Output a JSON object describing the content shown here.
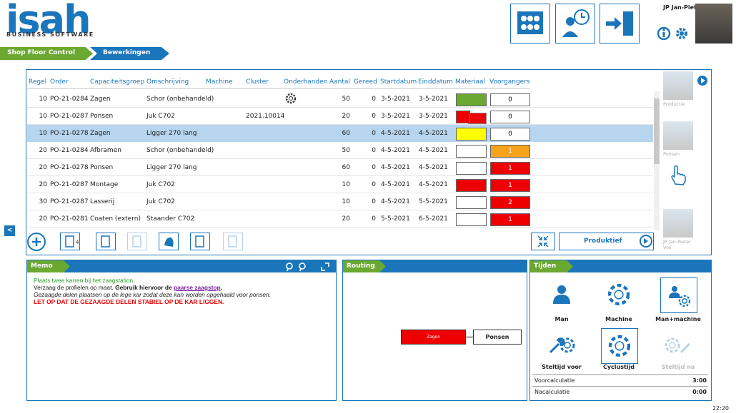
{
  "header": {
    "logo": "isah",
    "logo_sub": "BUSINESS SOFTWARE",
    "user": "JP Jan-Pieter Vos"
  },
  "breadcrumb": [
    "Shop Floor Control",
    "Bewerkingen"
  ],
  "table": {
    "columns": [
      "Regel",
      "Order",
      "Capaciteitsgroep",
      "Omschrijving",
      "Machine",
      "Cluster",
      "Onderhanden",
      "Aantal",
      "Gereed",
      "Startdatum",
      "Einddatum",
      "Materiaal",
      "Voorgangers"
    ],
    "rows": [
      {
        "regel": "10",
        "order": "PO-21-0284",
        "groep": "Zagen",
        "omschrijving": "Schor (onbehandeld)",
        "busy": true,
        "aantal": "50",
        "gereed": "0",
        "start": "3-5-2021",
        "eind": "3-5-2021",
        "materiaal": "#6aa832",
        "voorgangers": "0",
        "voorgangers_color": "#ffffff"
      },
      {
        "regel": "10",
        "order": "PO-21-0287",
        "groep": "Ponsen",
        "omschrijving": "Juk C702",
        "cluster": "2021.10014",
        "aantal": "20",
        "gereed": "0",
        "start": "3-5-2021",
        "eind": "3-5-2021",
        "materiaal": "#ee0000",
        "materiaal_stacked": true,
        "voorgangers": "0",
        "voorgangers_color": "#ffffff"
      },
      {
        "regel": "10",
        "order": "PO-21-0278",
        "groep": "Zagen",
        "omschrijving": "Ligger 270 lang",
        "aantal": "60",
        "gereed": "0",
        "start": "4-5-2021",
        "eind": "4-5-2021",
        "materiaal": "#ffff00",
        "voorgangers": "0",
        "voorgangers_color": "#ffffff",
        "selected": true
      },
      {
        "regel": "20",
        "order": "PO-21-0284",
        "groep": "Afbramen",
        "omschrijving": "Schor (onbehandeld)",
        "aantal": "50",
        "gereed": "0",
        "start": "4-5-2021",
        "eind": "4-5-2021",
        "materiaal": "#ffffff",
        "voorgangers": "1",
        "voorgangers_color": "#f7a21b"
      },
      {
        "regel": "20",
        "order": "PO-21-0278",
        "groep": "Ponsen",
        "omschrijving": "Ligger 270 lang",
        "aantal": "60",
        "gereed": "0",
        "start": "4-5-2021",
        "eind": "4-5-2021",
        "materiaal": "#ffffff",
        "voorgangers": "1",
        "voorgangers_color": "#ee0000"
      },
      {
        "regel": "20",
        "order": "PO-21-0287",
        "groep": "Montage",
        "omschrijving": "Juk C702",
        "aantal": "10",
        "gereed": "0",
        "start": "4-5-2021",
        "eind": "4-5-2021",
        "materiaal": "#ee0000",
        "voorgangers": "1",
        "voorgangers_color": "#ee0000"
      },
      {
        "regel": "30",
        "order": "PO-21-0287",
        "groep": "Lasserij",
        "omschrijving": "Juk C702",
        "aantal": "10",
        "gereed": "0",
        "start": "4-5-2021",
        "eind": "5-5-2021",
        "materiaal": "#ffffff",
        "voorgangers": "2",
        "voorgangers_color": "#ee0000"
      },
      {
        "regel": "20",
        "order": "PO-21-0281",
        "groep": "Coaten (extern)",
        "omschrijving": "Staander C702",
        "aantal": "20",
        "gereed": "0",
        "start": "5-5-2021",
        "eind": "6-5-2021",
        "materiaal": "#ffffff",
        "voorgangers": "1",
        "voorgangers_color": "#ee0000"
      }
    ]
  },
  "toolbar": {
    "document_count": "4",
    "status": "Produktief"
  },
  "side": [
    "Productie",
    "Ponsen",
    "JP Jan-Pieter Vos"
  ],
  "memo": {
    "title": "Memo",
    "line1": "Plaats twee karren bij het zaagstation.",
    "line2": [
      "Verzaag de profielen op maat. ",
      "Gebruik hiervoor de ",
      "paarse zaagstop",
      "."
    ],
    "line3": "Gezaagde delen plaatsen op de lege kar zodat deze kan worden opgehaald voor ponsen.",
    "line4": "LET OP DAT DE GEZAAGDE DELEN STABIEL OP DE KAR LIGGEN."
  },
  "routing": {
    "title": "Routing",
    "nodes": [
      "Zagen",
      "Ponsen"
    ]
  },
  "tijden": {
    "title": "Tijden",
    "options": [
      "Man",
      "Machine",
      "Man+machine",
      "Steltijd voor",
      "Cyclustijd",
      "Steltijd na"
    ],
    "rows": [
      [
        "Voorcalculatie",
        "3:00"
      ],
      [
        "Nacalculatie",
        "0:00"
      ]
    ]
  },
  "clock": "22:20"
}
